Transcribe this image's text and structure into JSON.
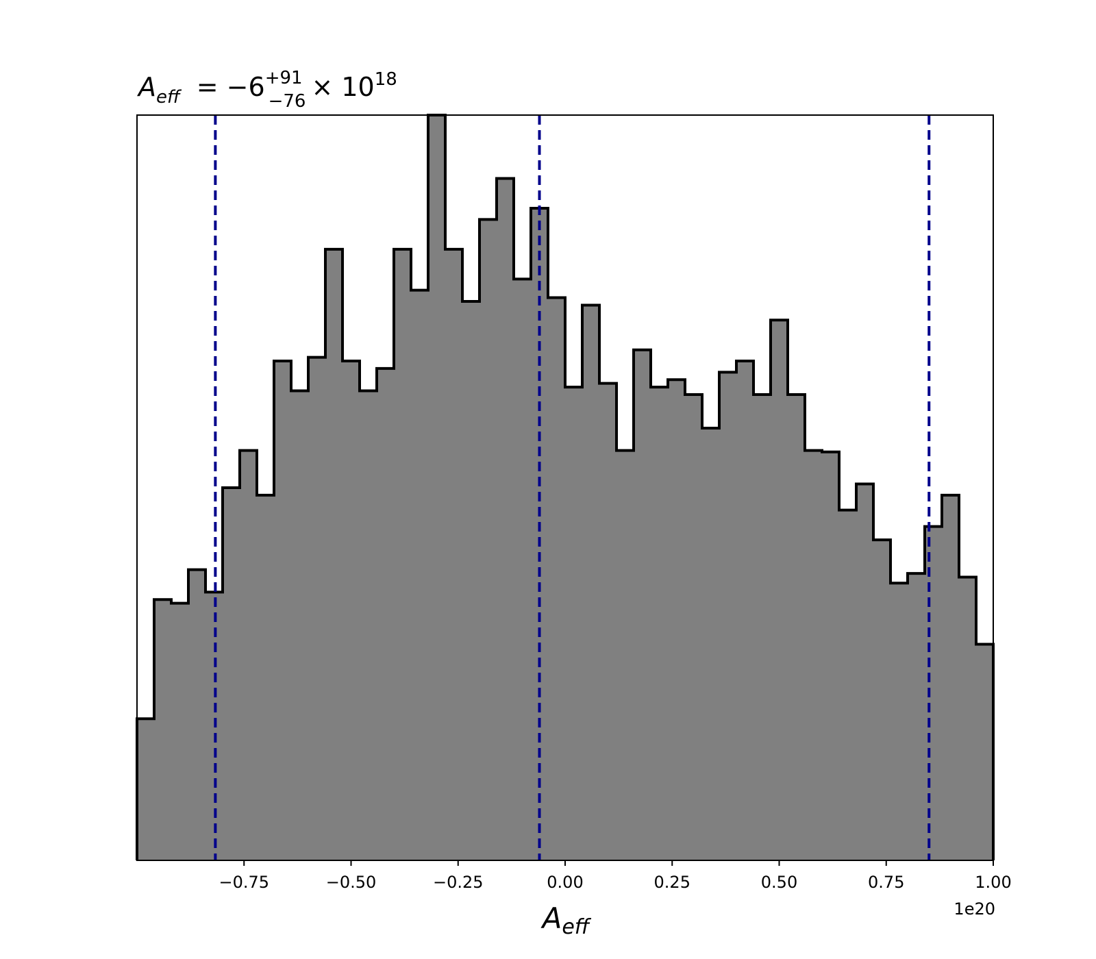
{
  "chart_data": {
    "type": "histogram",
    "title": {
      "symbol": "A",
      "symbol_subscript": "eff",
      "equals": "= −6",
      "plus": "+91",
      "minus": "−76",
      "times": "× 10",
      "exponent": "18"
    },
    "xlabel": {
      "symbol": "A",
      "subscript": "eff"
    },
    "ylabel": "",
    "x_offset_text": "1e20",
    "xlim": [
      -1.0,
      1.0
    ],
    "ylim": [
      0,
      1.0
    ],
    "xticks": [
      -0.75,
      -0.5,
      -0.25,
      0.0,
      0.25,
      0.5,
      0.75,
      1.0
    ],
    "xtick_labels": [
      "−0.75",
      "−0.50",
      "−0.25",
      "0.00",
      "0.25",
      "0.50",
      "0.75",
      "1.00"
    ],
    "bin_edges": [
      -1.0,
      -0.96,
      -0.92,
      -0.88,
      -0.84,
      -0.8,
      -0.76,
      -0.72,
      -0.68,
      -0.64,
      -0.6,
      -0.56,
      -0.52,
      -0.48,
      -0.44,
      -0.4,
      -0.36,
      -0.32,
      -0.28,
      -0.24,
      -0.2,
      -0.16,
      -0.12,
      -0.08,
      -0.04,
      0.0,
      0.04,
      0.08,
      0.12,
      0.16,
      0.2,
      0.24,
      0.28,
      0.32,
      0.36,
      0.4,
      0.44,
      0.48,
      0.52,
      0.56,
      0.6,
      0.64,
      0.68,
      0.72,
      0.76,
      0.8,
      0.84,
      0.88,
      0.92,
      0.96,
      1.0
    ],
    "counts": [
      0.19,
      0.35,
      0.345,
      0.39,
      0.36,
      0.5,
      0.55,
      0.49,
      0.67,
      0.63,
      0.675,
      0.82,
      0.67,
      0.63,
      0.66,
      0.82,
      0.765,
      1.0,
      0.82,
      0.75,
      0.86,
      0.915,
      0.78,
      0.875,
      0.755,
      0.635,
      0.745,
      0.64,
      0.55,
      0.685,
      0.635,
      0.645,
      0.625,
      0.58,
      0.655,
      0.67,
      0.625,
      0.725,
      0.625,
      0.55,
      0.548,
      0.47,
      0.505,
      0.43,
      0.372,
      0.385,
      0.448,
      0.49,
      0.38,
      0.29
    ],
    "quantile_lines": [
      -0.817,
      -0.06,
      0.85
    ],
    "hist_color": "#808080",
    "edge_color": "#000000",
    "line_color": "#00008b",
    "grid": false
  }
}
